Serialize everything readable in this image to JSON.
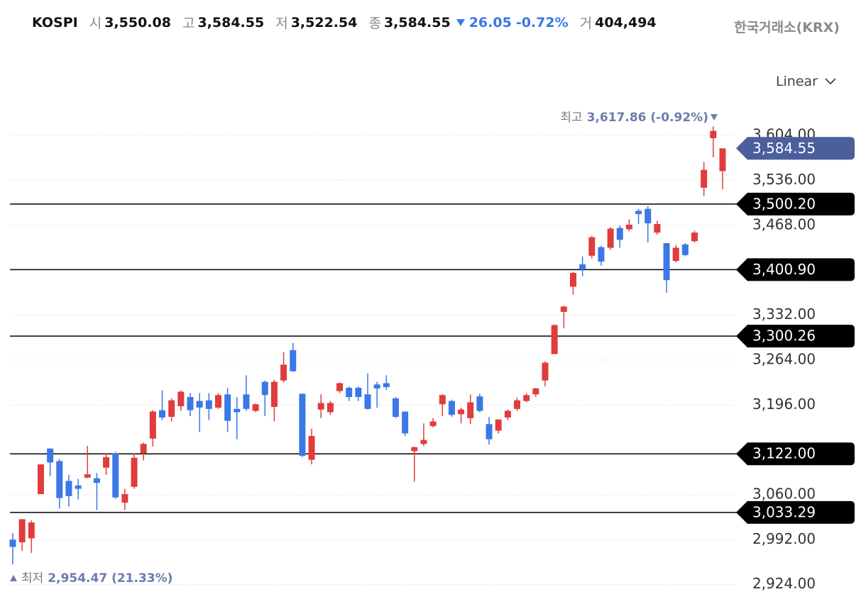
{
  "header": {
    "symbol": "KOSPI",
    "items": [
      {
        "label": "시",
        "value": "3,550.08"
      },
      {
        "label": "고",
        "value": "3,584.55"
      },
      {
        "label": "저",
        "value": "3,522.54"
      },
      {
        "label": "종",
        "value": "3,584.55"
      }
    ],
    "change": "26.05",
    "change_pct": "-0.72%",
    "volume_label": "거",
    "volume": "404,494",
    "exchange": "한국거래소(KRX)"
  },
  "scale_selector": "Linear",
  "chart_data": {
    "type": "candlestick",
    "open": [
      2992,
      2988,
      2994,
      3061,
      3130,
      3111,
      3081,
      3074,
      3086,
      3085,
      3101,
      3123,
      3048,
      3072,
      3123,
      3145,
      3188,
      3178,
      3194,
      3208,
      3202,
      3203,
      3192,
      3212,
      3190,
      3212,
      3187,
      3231,
      3193,
      3233,
      3279,
      3213,
      3113,
      3189,
      3185,
      3217,
      3222,
      3222,
      3212,
      3227,
      3229,
      3206,
      3186,
      3126,
      3137,
      3164,
      3197,
      3202,
      3182,
      3176,
      3209,
      3167,
      3157,
      3177,
      3190,
      3202,
      3212,
      3233,
      3273,
      3337,
      3375,
      3409,
      3422,
      3435,
      3434,
      3464,
      3462,
      3490,
      3493,
      3457,
      3441,
      3414,
      3439,
      3444,
      3525,
      3600,
      3550.08
    ],
    "high": [
      3002,
      3023,
      3021,
      3106,
      3130,
      3114,
      3090,
      3084,
      3134,
      3093,
      3123,
      3125,
      3069,
      3123,
      3139,
      3188,
      3218,
      3206,
      3218,
      3214,
      3214,
      3214,
      3214,
      3222,
      3208,
      3241,
      3198,
      3233,
      3234,
      3276,
      3290,
      3213,
      3160,
      3212,
      3202,
      3230,
      3224,
      3224,
      3244,
      3231,
      3241,
      3208,
      3186,
      3133,
      3168,
      3176,
      3212,
      3204,
      3192,
      3212,
      3213,
      3178,
      3174,
      3189,
      3207,
      3214,
      3222,
      3262,
      3318,
      3346,
      3398,
      3421,
      3452,
      3437,
      3465,
      3468,
      3477,
      3493,
      3497,
      3475,
      3441,
      3438,
      3441,
      3460,
      3564,
      3617.86,
      3584.55
    ],
    "low": [
      2954.47,
      2975,
      2972,
      3061,
      3088,
      3039,
      3042,
      3053,
      3085,
      3037,
      3090,
      3054,
      3037,
      3069,
      3112,
      3133,
      3173,
      3171,
      3187,
      3179,
      3155,
      3173,
      3190,
      3155,
      3144,
      3187,
      3185,
      3179,
      3171,
      3230,
      3246,
      3117,
      3106,
      3176,
      3181,
      3214,
      3202,
      3202,
      3189,
      3192,
      3219,
      3176,
      3149,
      3080,
      3134,
      3162,
      3179,
      3178,
      3168,
      3167,
      3185,
      3136,
      3153,
      3173,
      3187,
      3200,
      3208,
      3224,
      3273,
      3312,
      3363,
      3391,
      3418,
      3407,
      3431,
      3434,
      3459,
      3470,
      3442,
      3454,
      3366,
      3412,
      3421,
      3442,
      3512,
      3571,
      3522.54
    ],
    "close": [
      2981,
      3023,
      3018,
      3106,
      3109,
      3055,
      3058,
      3069,
      3091,
      3078,
      3117,
      3056,
      3061,
      3116,
      3137,
      3186,
      3177,
      3203,
      3216,
      3188,
      3192,
      3190,
      3211,
      3172,
      3185,
      3190,
      3197,
      3211,
      3231,
      3257,
      3247,
      3119,
      3149,
      3199,
      3199,
      3229,
      3208,
      3208,
      3190,
      3221,
      3223,
      3178,
      3153,
      3132,
      3143,
      3171,
      3211,
      3181,
      3189,
      3200,
      3187,
      3144,
      3174,
      3187,
      3203,
      3211,
      3221,
      3260,
      3317,
      3345,
      3396,
      3401,
      3450,
      3413,
      3463,
      3446,
      3469,
      3485,
      3471,
      3470,
      3385,
      3434,
      3423,
      3457,
      3552,
      3611,
      3584.55
    ],
    "up_color": "#e03c3c",
    "down_color": "#3b78e7",
    "ylim": [
      2900,
      3660
    ],
    "yticks": [
      {
        "value": 3604,
        "label": "3,604.00"
      },
      {
        "value": 3536,
        "label": "3,536.00"
      },
      {
        "value": 3468,
        "label": "3,468.00"
      },
      {
        "value": 3332,
        "label": "3,332.00"
      },
      {
        "value": 3264,
        "label": "3,264.00"
      },
      {
        "value": 3196,
        "label": "3,196.00"
      },
      {
        "value": 3060,
        "label": "3,060.00"
      },
      {
        "value": 2992,
        "label": "2,992.00"
      },
      {
        "value": 2924,
        "label": "2,924.00"
      }
    ],
    "grid": true,
    "hlines": [
      {
        "value": 3500.2,
        "label": "3,500.20"
      },
      {
        "value": 3400.9,
        "label": "3,400.90"
      },
      {
        "value": 3300.26,
        "label": "3,300.26"
      },
      {
        "value": 3122,
        "label": "3,122.00"
      },
      {
        "value": 3033.29,
        "label": "3,033.29"
      }
    ],
    "last_price": {
      "value": 3584.55,
      "label": "3,584.55",
      "color": "#4a5f9c"
    },
    "high_note": {
      "label": "최고",
      "text": "3,617.86 (-0.92%)"
    },
    "low_note": {
      "label": "최저",
      "text": "2,954.47 (21.33%)"
    }
  }
}
